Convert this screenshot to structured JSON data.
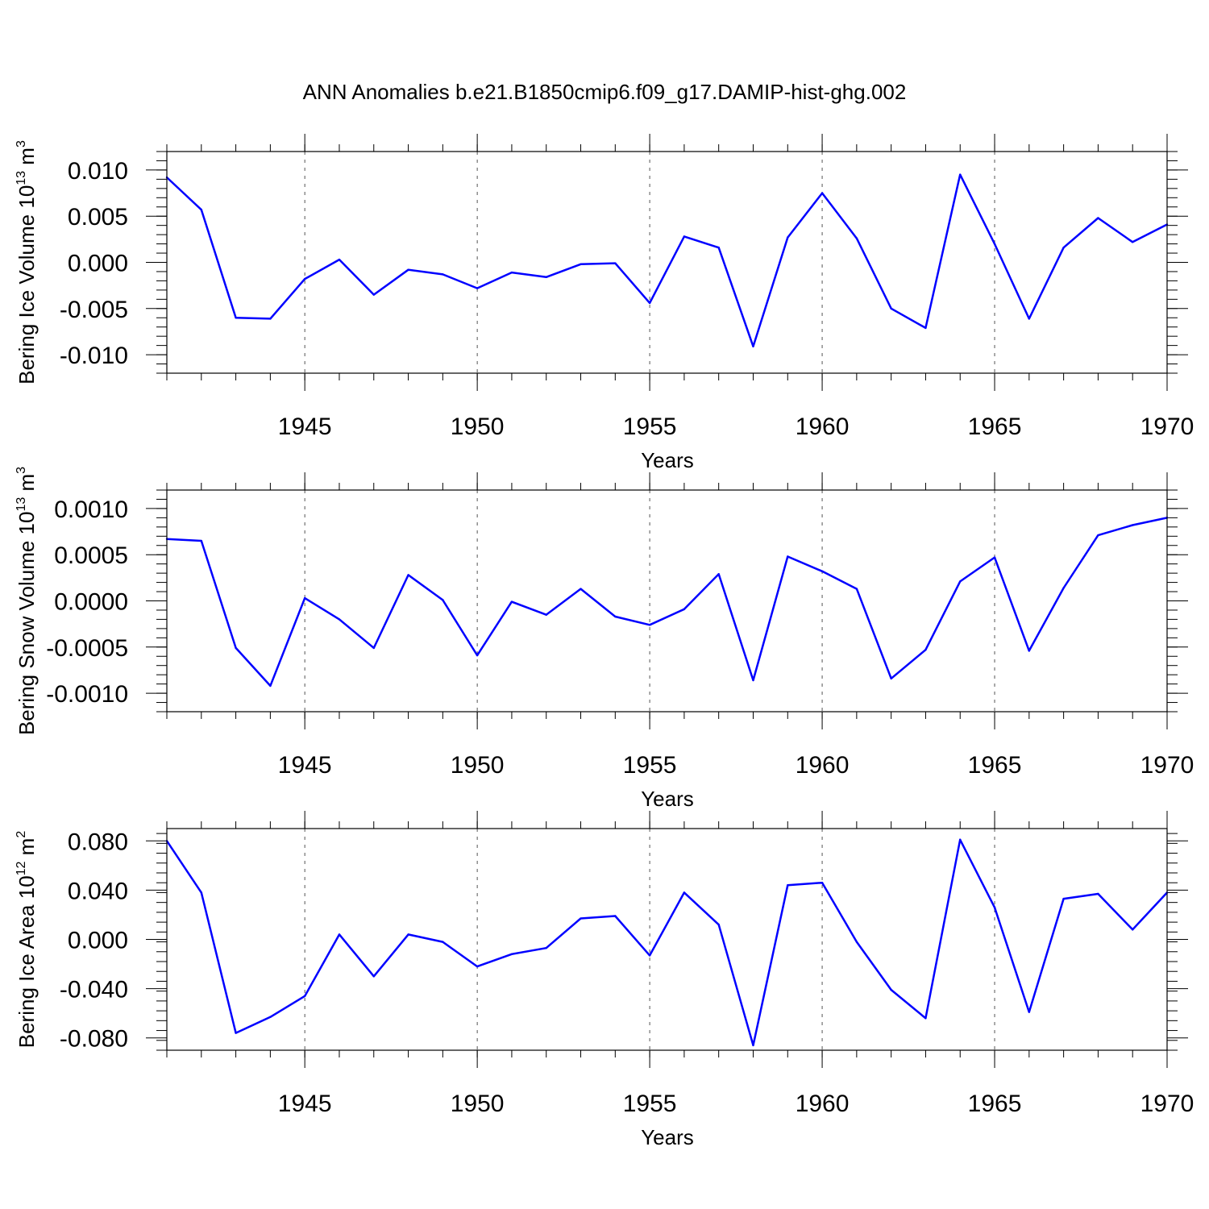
{
  "title": "ANN Anomalies b.e21.B1850cmip6.f09_g17.DAMIP-hist-ghg.002",
  "colors": {
    "line": "#0000ff",
    "frame": "#000000",
    "grid": "#555555"
  },
  "chart_data": [
    {
      "type": "line",
      "ylabel_main": "Bering Ice Volume 10",
      "ylabel_exp": "13",
      "ylabel_unit": "m",
      "ylabel_unit_exp": "3",
      "xlabel": "Years",
      "xlim": [
        1941,
        1970
      ],
      "ylim": [
        -0.012,
        0.012
      ],
      "yticks": [
        0.01,
        0.005,
        0.0,
        -0.005,
        -0.01
      ],
      "ytick_labels": [
        "0.010",
        "0.005",
        "0.000",
        "-0.005",
        "-0.010"
      ],
      "xticks": [
        1945,
        1950,
        1955,
        1960,
        1965,
        1970
      ],
      "xtick_labels": [
        "1945",
        "1950",
        "1955",
        "1960",
        "1965",
        "1970"
      ],
      "grid": "vertical dashed lines at major x ticks",
      "x": [
        1941,
        1942,
        1943,
        1944,
        1945,
        1946,
        1947,
        1948,
        1949,
        1950,
        1951,
        1952,
        1953,
        1954,
        1955,
        1956,
        1957,
        1958,
        1959,
        1960,
        1961,
        1962,
        1963,
        1964,
        1965,
        1966,
        1967,
        1968,
        1969,
        1970
      ],
      "y": [
        0.0092,
        0.0057,
        -0.006,
        -0.0061,
        -0.0018,
        0.0003,
        -0.0035,
        -0.0008,
        -0.0013,
        -0.0028,
        -0.0011,
        -0.0016,
        -0.0002,
        -0.0001,
        -0.0044,
        0.0028,
        0.0016,
        -0.0091,
        0.0027,
        0.0075,
        0.0026,
        -0.005,
        -0.0071,
        0.0095,
        0.002,
        -0.0061,
        0.0016,
        0.0048,
        0.0022,
        0.0041
      ]
    },
    {
      "type": "line",
      "ylabel_main": "Bering Snow Volume 10",
      "ylabel_exp": "13",
      "ylabel_unit": "m",
      "ylabel_unit_exp": "3",
      "xlabel": "Years",
      "xlim": [
        1941,
        1970
      ],
      "ylim": [
        -0.0012,
        0.0012
      ],
      "yticks": [
        0.001,
        0.0005,
        0.0,
        -0.0005,
        -0.001
      ],
      "ytick_labels": [
        "0.0010",
        "0.0005",
        "0.0000",
        "-0.0005",
        "-0.0010"
      ],
      "xticks": [
        1945,
        1950,
        1955,
        1960,
        1965,
        1970
      ],
      "xtick_labels": [
        "1945",
        "1950",
        "1955",
        "1960",
        "1965",
        "1970"
      ],
      "grid": "vertical dashed lines at major x ticks",
      "x": [
        1941,
        1942,
        1943,
        1944,
        1945,
        1946,
        1947,
        1948,
        1949,
        1950,
        1951,
        1952,
        1953,
        1954,
        1955,
        1956,
        1957,
        1958,
        1959,
        1960,
        1961,
        1962,
        1963,
        1964,
        1965,
        1966,
        1967,
        1968,
        1969,
        1970
      ],
      "y": [
        0.00067,
        0.00065,
        -0.00051,
        -0.00092,
        3e-05,
        -0.0002,
        -0.00051,
        0.00028,
        1e-05,
        -0.00059,
        -1e-05,
        -0.00015,
        0.00013,
        -0.00017,
        -0.00026,
        -9e-05,
        0.00029,
        -0.00086,
        0.00048,
        0.00032,
        0.00013,
        -0.00084,
        -0.00053,
        0.00021,
        0.00047,
        -0.00054,
        0.00014,
        0.00071,
        0.00082,
        0.0009
      ]
    },
    {
      "type": "line",
      "ylabel_main": "Bering Ice Area 10",
      "ylabel_exp": "12",
      "ylabel_unit": "m",
      "ylabel_unit_exp": "2",
      "xlabel": "Years",
      "xlim": [
        1941,
        1970
      ],
      "ylim": [
        -0.09,
        0.09
      ],
      "yticks": [
        0.08,
        0.04,
        0.0,
        -0.04,
        -0.08
      ],
      "ytick_labels": [
        "0.080",
        "0.040",
        "0.000",
        "-0.040",
        "-0.080"
      ],
      "xticks": [
        1945,
        1950,
        1955,
        1960,
        1965,
        1970
      ],
      "xtick_labels": [
        "1945",
        "1950",
        "1955",
        "1960",
        "1965",
        "1970"
      ],
      "grid": "vertical dashed lines at major x ticks",
      "x": [
        1941,
        1942,
        1943,
        1944,
        1945,
        1946,
        1947,
        1948,
        1949,
        1950,
        1951,
        1952,
        1953,
        1954,
        1955,
        1956,
        1957,
        1958,
        1959,
        1960,
        1961,
        1962,
        1963,
        1964,
        1965,
        1966,
        1967,
        1968,
        1969,
        1970
      ],
      "y": [
        0.08,
        0.038,
        -0.076,
        -0.063,
        -0.046,
        0.004,
        -0.03,
        0.004,
        -0.002,
        -0.022,
        -0.012,
        -0.007,
        0.017,
        0.019,
        -0.013,
        0.038,
        0.012,
        -0.086,
        0.044,
        0.046,
        -0.002,
        -0.041,
        -0.064,
        0.081,
        0.026,
        -0.059,
        0.033,
        0.037,
        0.008,
        0.038
      ]
    }
  ]
}
